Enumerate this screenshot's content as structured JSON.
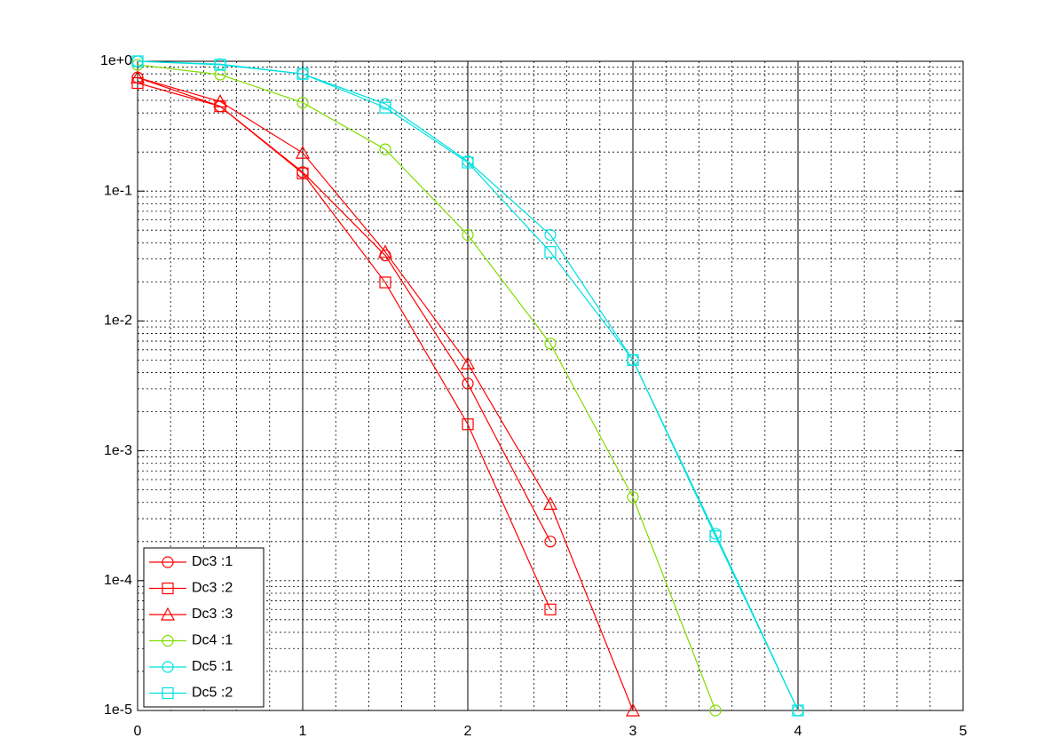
{
  "chart_data": {
    "type": "line",
    "log_y": true,
    "grid": true,
    "legend": "lower left",
    "x": [
      0,
      0.5,
      1,
      1.5,
      2,
      2.5,
      3,
      3.5,
      4
    ],
    "xlim": [
      0,
      5
    ],
    "xticks": [
      0,
      1,
      2,
      3,
      4,
      5
    ],
    "ylim": [
      1e-05,
      1
    ],
    "yticks": [
      {
        "value": 1,
        "label": "1e+0"
      },
      {
        "value": 0.1,
        "label": "1e-1"
      },
      {
        "value": 0.01,
        "label": "1e-2"
      },
      {
        "value": 0.001,
        "label": "1e-3"
      },
      {
        "value": 0.0001,
        "label": "1e-4"
      },
      {
        "value": 1e-05,
        "label": "1e-5"
      }
    ],
    "series": [
      {
        "name": "Dc3 :1",
        "color": "#ff0000",
        "marker": "circle",
        "values": [
          0.75,
          0.45,
          0.14,
          0.032,
          0.0033,
          0.0002,
          null,
          null,
          null
        ]
      },
      {
        "name": "Dc3 :2",
        "color": "#ff0000",
        "marker": "square",
        "values": [
          0.68,
          0.45,
          0.137,
          0.0198,
          0.0016,
          6e-05,
          null,
          null,
          null
        ]
      },
      {
        "name": "Dc3 :3",
        "color": "#ff0000",
        "marker": "triangle",
        "values": [
          0.75,
          0.49,
          0.197,
          0.034,
          0.0047,
          0.00039,
          1e-05,
          null,
          null
        ]
      },
      {
        "name": "Dc4 :1",
        "color": "#7fdc00",
        "marker": "circle",
        "values": [
          0.94,
          0.79,
          0.48,
          0.21,
          0.046,
          0.0067,
          0.00044,
          1e-05,
          null
        ]
      },
      {
        "name": "Dc5 :1",
        "color": "#00e0e0",
        "marker": "circle",
        "values": [
          1,
          0.95,
          0.8,
          0.47,
          0.17,
          0.046,
          0.005,
          0.00023,
          1e-05
        ]
      },
      {
        "name": "Dc5 :2",
        "color": "#00e0e0",
        "marker": "square",
        "values": [
          1,
          0.94,
          0.8,
          0.44,
          0.166,
          0.034,
          0.005,
          0.00022,
          1e-05
        ]
      }
    ]
  }
}
